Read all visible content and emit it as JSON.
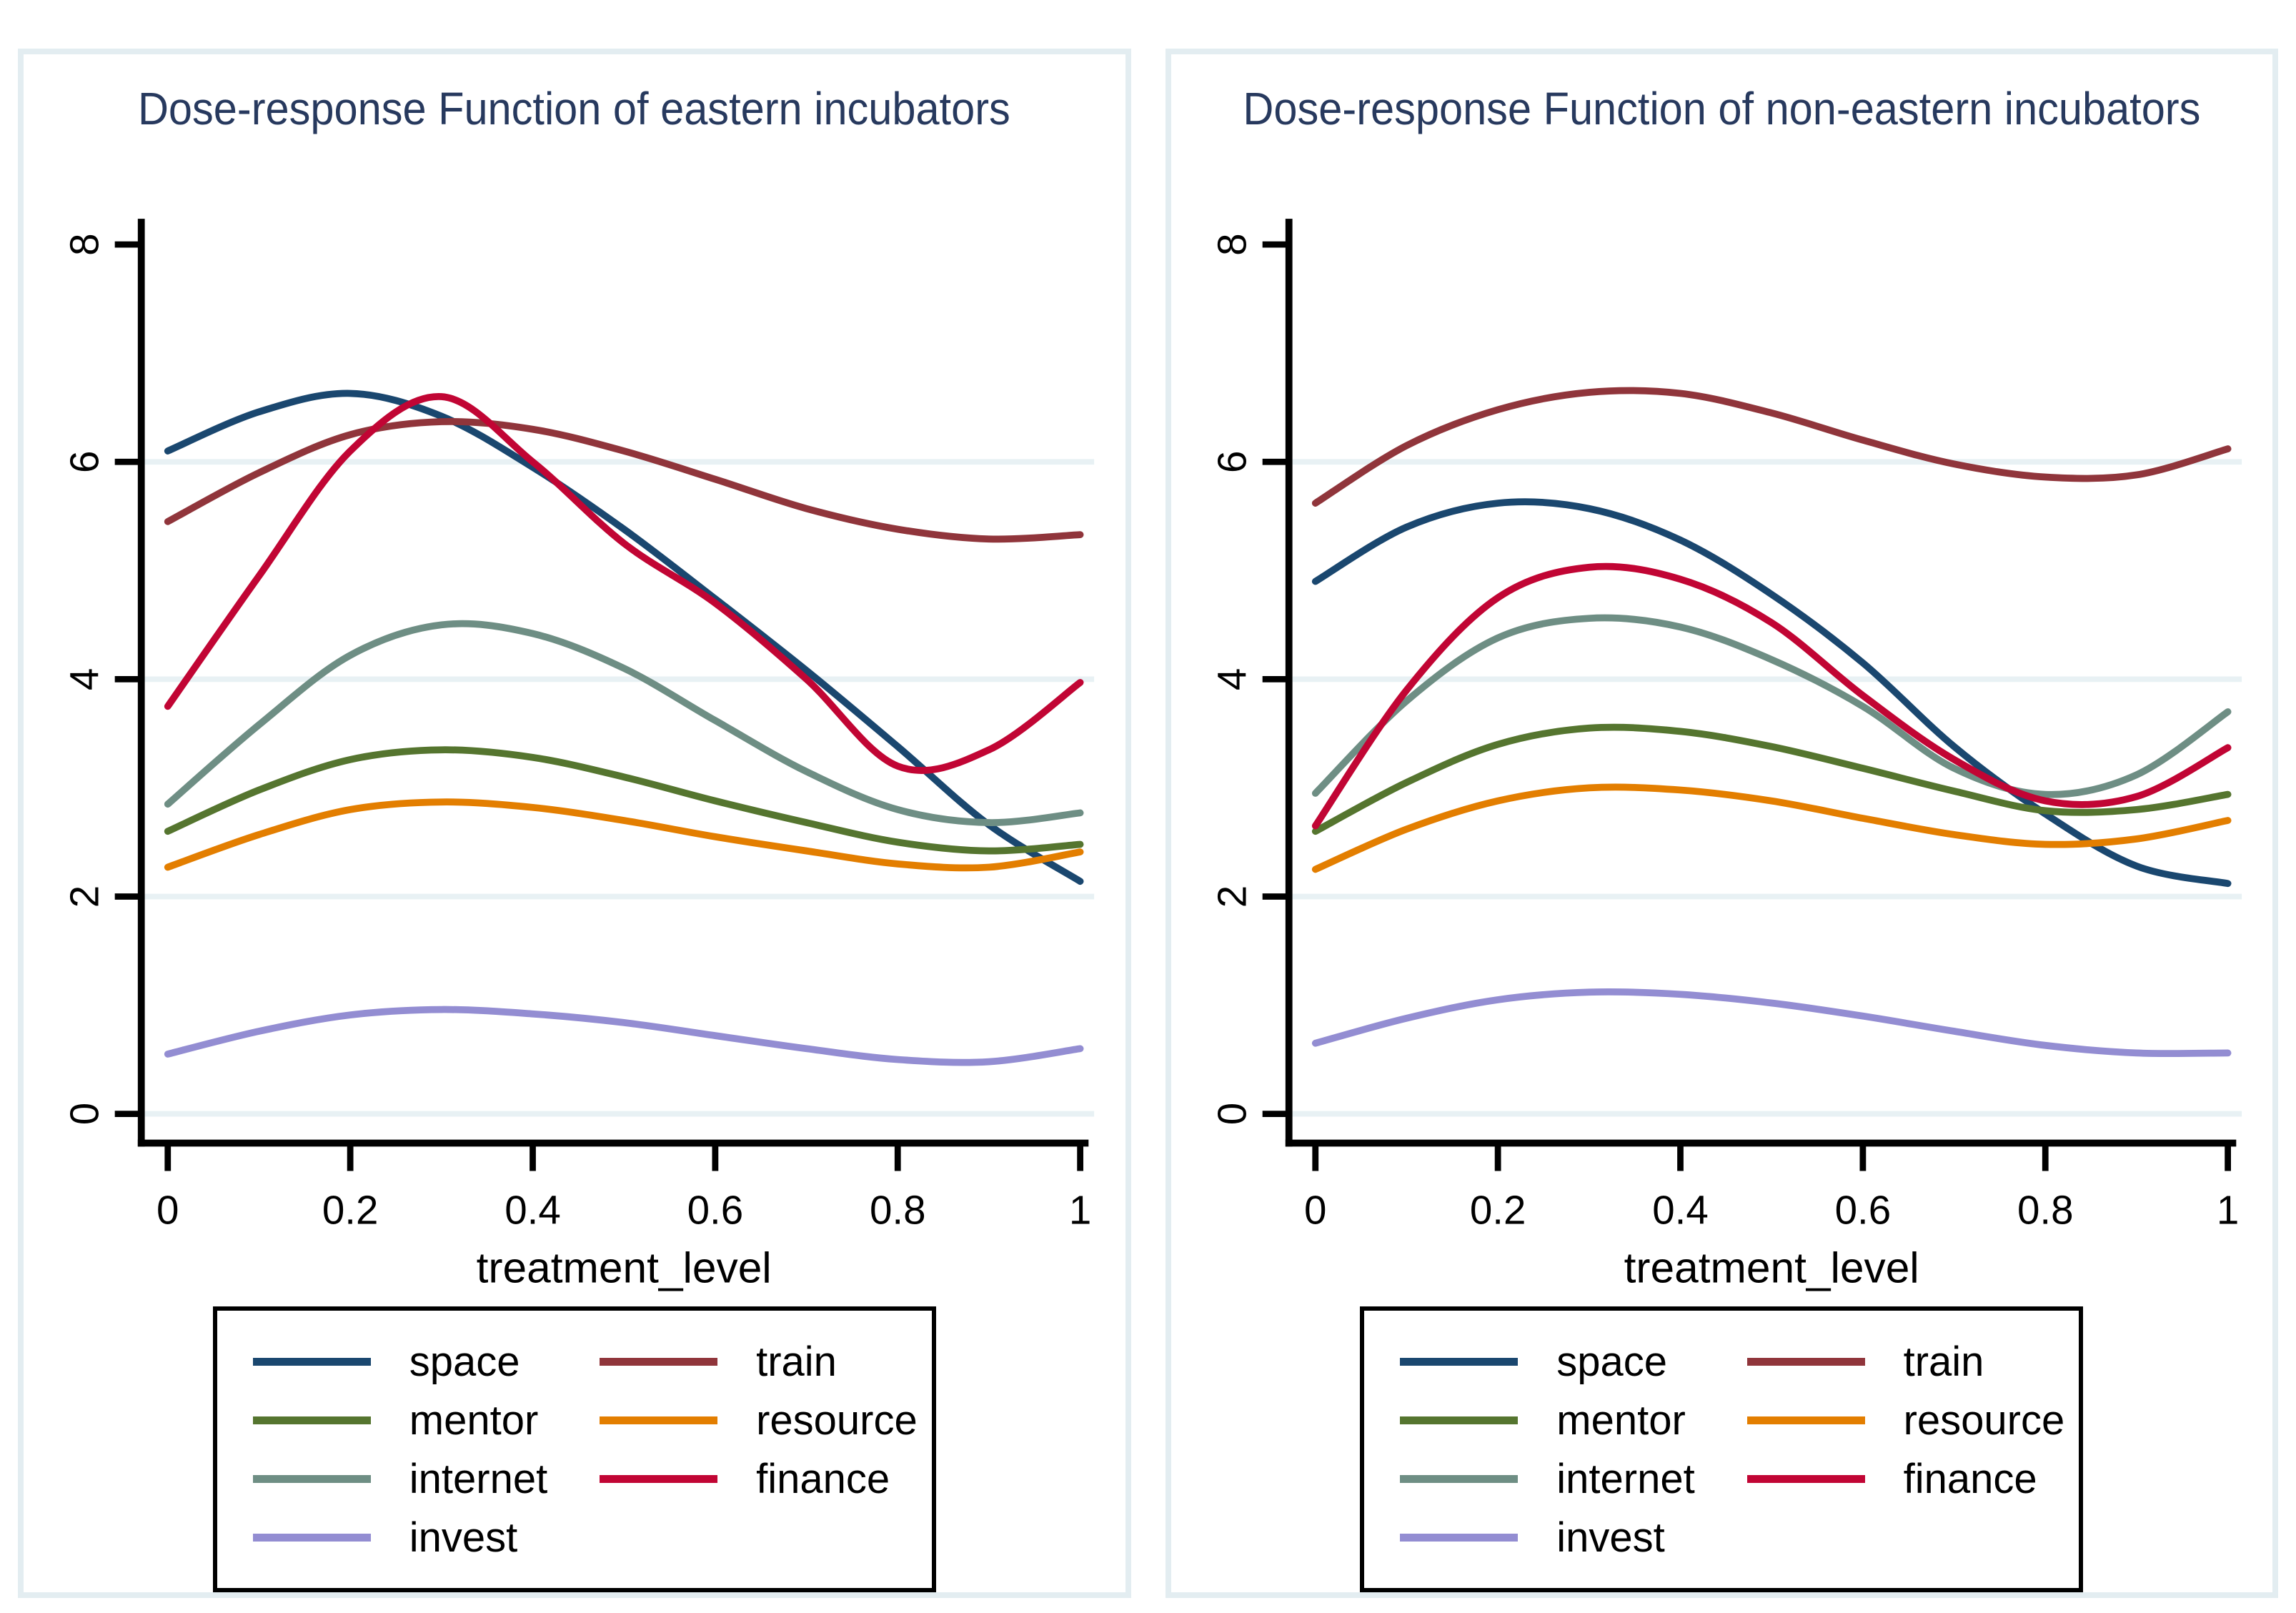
{
  "colors": {
    "title": "#27395e",
    "grid": "#e8f1f4",
    "axis": "#000000",
    "panel_border": "#e3edf1",
    "legend_border": "#000000"
  },
  "axis": {
    "x_label": "treatment_level",
    "x_ticks": [
      "0",
      "0.2",
      "0.4",
      "0.6",
      "0.8",
      "1"
    ],
    "y_ticks": [
      "0",
      "2",
      "4",
      "6",
      "8"
    ]
  },
  "chart_data": [
    {
      "type": "line",
      "title": "Dose-response Function of eastern incubators",
      "xlabel": "treatment_level",
      "ylabel": "",
      "xlim": [
        0,
        1
      ],
      "ylim": [
        0,
        8
      ],
      "x_tick_values": [
        0,
        0.2,
        0.4,
        0.6,
        0.8,
        1
      ],
      "y_tick_values": [
        0,
        2,
        4,
        6,
        8
      ],
      "grid_y": [
        0,
        2,
        4,
        6
      ],
      "legend_position": "below",
      "x": [
        0,
        0.1,
        0.2,
        0.3,
        0.4,
        0.5,
        0.6,
        0.7,
        0.8,
        0.9,
        1
      ],
      "series": [
        {
          "name": "space",
          "color": "#1a476f",
          "values": [
            6.1,
            6.46,
            6.63,
            6.42,
            5.95,
            5.38,
            4.74,
            4.08,
            3.38,
            2.66,
            2.14
          ]
        },
        {
          "name": "train",
          "color": "#90353b",
          "values": [
            5.45,
            5.9,
            6.25,
            6.37,
            6.3,
            6.1,
            5.84,
            5.57,
            5.38,
            5.29,
            5.33
          ]
        },
        {
          "name": "mentor",
          "color": "#55752f",
          "values": [
            2.6,
            2.98,
            3.26,
            3.35,
            3.28,
            3.1,
            2.88,
            2.68,
            2.5,
            2.42,
            2.48
          ]
        },
        {
          "name": "resource",
          "color": "#e37e00",
          "values": [
            2.27,
            2.57,
            2.8,
            2.87,
            2.82,
            2.7,
            2.55,
            2.42,
            2.3,
            2.27,
            2.41
          ]
        },
        {
          "name": "internet",
          "color": "#6e8e84",
          "values": [
            2.85,
            3.58,
            4.22,
            4.5,
            4.42,
            4.1,
            3.62,
            3.15,
            2.8,
            2.68,
            2.77
          ]
        },
        {
          "name": "finance",
          "color": "#c10534",
          "values": [
            3.75,
            4.95,
            6.1,
            6.6,
            6.0,
            5.25,
            4.7,
            4.0,
            3.2,
            3.35,
            3.97
          ]
        },
        {
          "name": "invest",
          "color": "#938dd2",
          "values": [
            0.55,
            0.76,
            0.91,
            0.96,
            0.92,
            0.84,
            0.72,
            0.6,
            0.5,
            0.48,
            0.6
          ]
        }
      ]
    },
    {
      "type": "line",
      "title": "Dose-response Function of non-eastern incubators",
      "xlabel": "treatment_level",
      "ylabel": "",
      "xlim": [
        0,
        1
      ],
      "ylim": [
        0,
        8
      ],
      "x_tick_values": [
        0,
        0.2,
        0.4,
        0.6,
        0.8,
        1
      ],
      "y_tick_values": [
        0,
        2,
        4,
        6,
        8
      ],
      "grid_y": [
        0,
        2,
        4,
        6
      ],
      "legend_position": "below",
      "x": [
        0,
        0.1,
        0.2,
        0.3,
        0.4,
        0.5,
        0.6,
        0.7,
        0.8,
        0.9,
        1
      ],
      "series": [
        {
          "name": "space",
          "color": "#1a476f",
          "values": [
            4.9,
            5.4,
            5.62,
            5.57,
            5.28,
            4.78,
            4.15,
            3.38,
            2.76,
            2.28,
            2.12
          ]
        },
        {
          "name": "train",
          "color": "#90353b",
          "values": [
            5.62,
            6.15,
            6.48,
            6.64,
            6.63,
            6.45,
            6.2,
            5.98,
            5.86,
            5.88,
            6.12
          ]
        },
        {
          "name": "mentor",
          "color": "#55752f",
          "values": [
            2.6,
            3.05,
            3.4,
            3.55,
            3.52,
            3.38,
            3.18,
            2.97,
            2.79,
            2.8,
            2.94
          ]
        },
        {
          "name": "resource",
          "color": "#e37e00",
          "values": [
            2.25,
            2.62,
            2.88,
            3.0,
            2.98,
            2.88,
            2.72,
            2.57,
            2.48,
            2.53,
            2.7
          ]
        },
        {
          "name": "internet",
          "color": "#6e8e84",
          "values": [
            2.95,
            3.8,
            4.38,
            4.56,
            4.48,
            4.18,
            3.75,
            3.18,
            2.94,
            3.12,
            3.7
          ]
        },
        {
          "name": "finance",
          "color": "#c10534",
          "values": [
            2.65,
            3.9,
            4.75,
            5.03,
            4.92,
            4.52,
            3.85,
            3.26,
            2.88,
            2.92,
            3.37
          ]
        },
        {
          "name": "invest",
          "color": "#938dd2",
          "values": [
            0.65,
            0.88,
            1.05,
            1.12,
            1.1,
            1.02,
            0.9,
            0.76,
            0.63,
            0.56,
            0.56
          ]
        }
      ]
    }
  ]
}
